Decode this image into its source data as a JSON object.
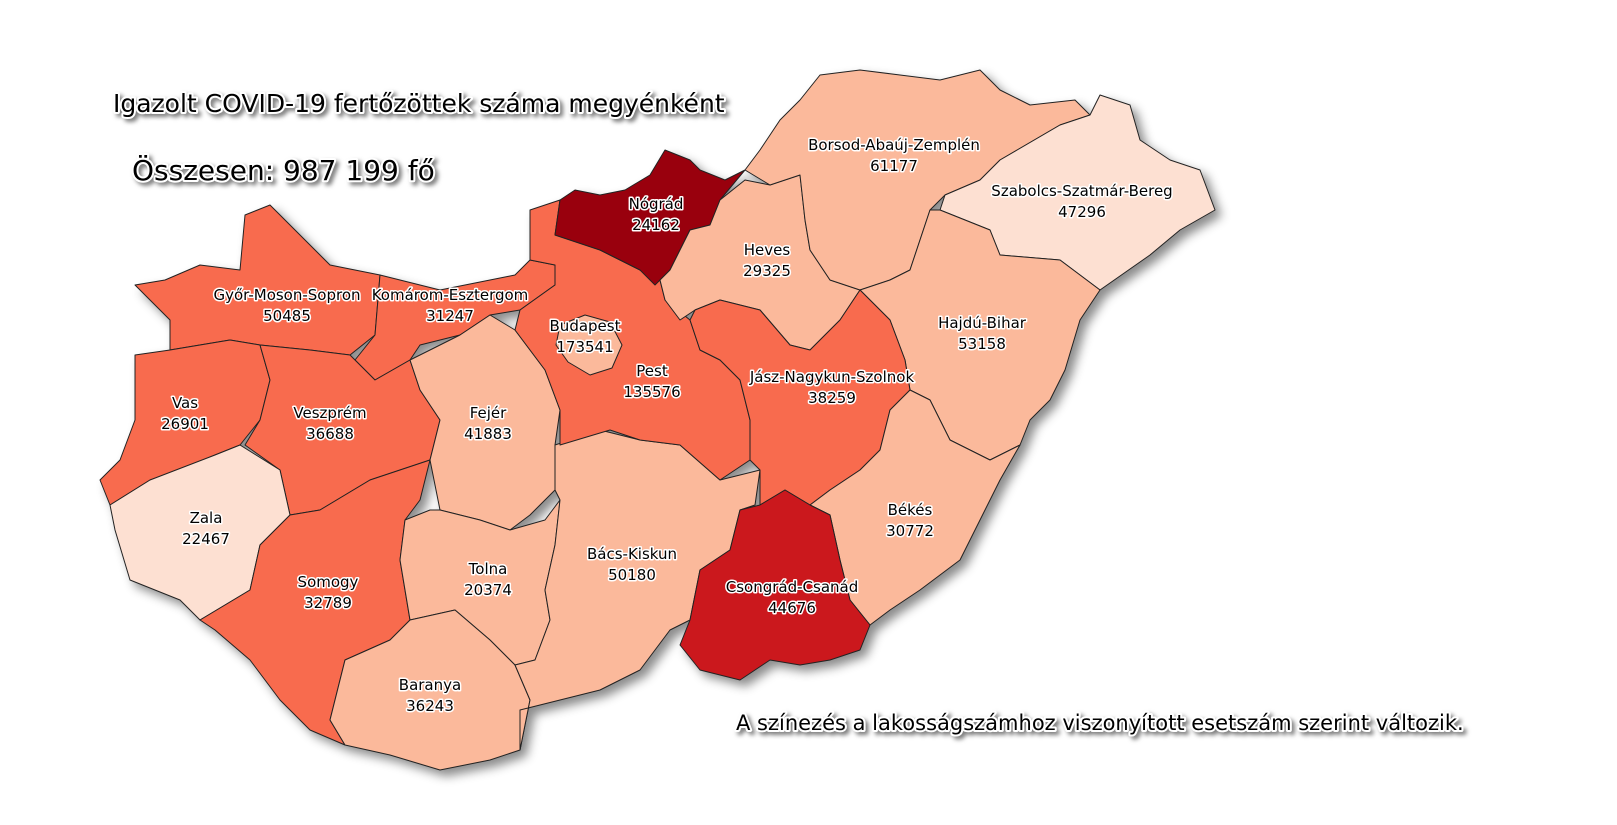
{
  "title": "Igazolt COVID-19 fertőzöttek száma megyénként",
  "total": "Összesen: 987 199 fő",
  "note": "A színezés a lakosságszámhoz viszonyított esetszám szerint változik.",
  "colors": {
    "lightest": "#fde0d2",
    "light": "#fbb99b",
    "medium": "#f86b4e",
    "high": "#cb181d",
    "highest": "#99000d"
  },
  "counties": [
    {
      "name": "Győr-Moson-Sopron",
      "cases": "50485",
      "level": "medium"
    },
    {
      "name": "Komárom-Esztergom",
      "cases": "31247",
      "level": "medium"
    },
    {
      "name": "Vas",
      "cases": "26901",
      "level": "medium"
    },
    {
      "name": "Veszprém",
      "cases": "36688",
      "level": "medium"
    },
    {
      "name": "Zala",
      "cases": "22467",
      "level": "lightest"
    },
    {
      "name": "Somogy",
      "cases": "32789",
      "level": "medium"
    },
    {
      "name": "Fejér",
      "cases": "41883",
      "level": "light"
    },
    {
      "name": "Tolna",
      "cases": "20374",
      "level": "light"
    },
    {
      "name": "Baranya",
      "cases": "36243",
      "level": "light"
    },
    {
      "name": "Bács-Kiskun",
      "cases": "50180",
      "level": "light"
    },
    {
      "name": "Pest",
      "cases": "135576",
      "level": "medium"
    },
    {
      "name": "Budapest",
      "cases": "173541",
      "level": "light"
    },
    {
      "name": "Nógrád",
      "cases": "24162",
      "level": "highest"
    },
    {
      "name": "Heves",
      "cases": "29325",
      "level": "light"
    },
    {
      "name": "Borsod-Abaúj-Zemplén",
      "cases": "61177",
      "level": "light"
    },
    {
      "name": "Szabolcs-Szatmár-Bereg",
      "cases": "47296",
      "level": "lightest"
    },
    {
      "name": "Hajdú-Bihar",
      "cases": "53158",
      "level": "light"
    },
    {
      "name": "Jász-Nagykun-Szolnok",
      "cases": "38259",
      "level": "medium"
    },
    {
      "name": "Békés",
      "cases": "30772",
      "level": "light"
    },
    {
      "name": "Csongrád-Csanád",
      "cases": "44676",
      "level": "high"
    }
  ]
}
